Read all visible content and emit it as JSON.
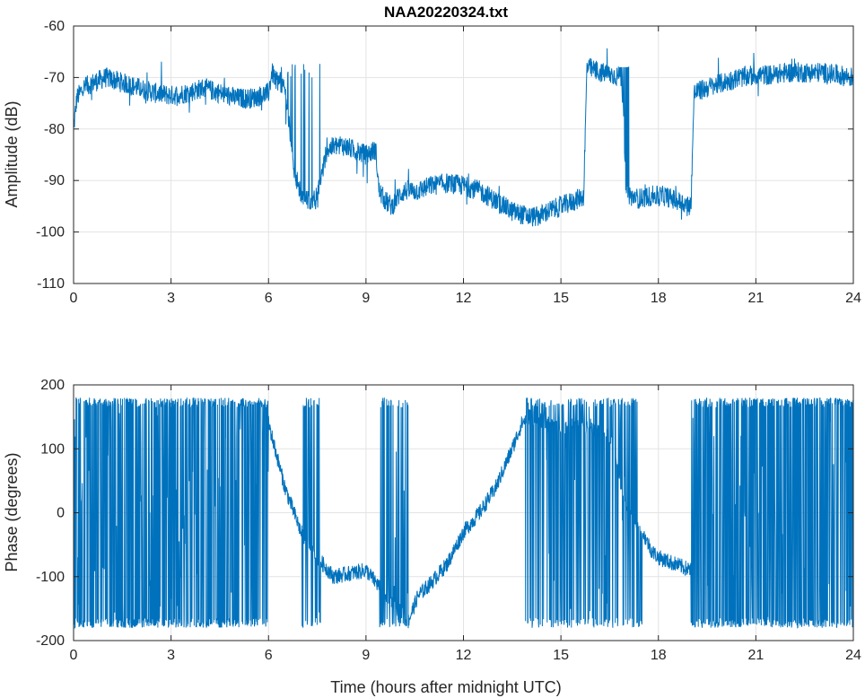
{
  "chart_data": [
    {
      "type": "line",
      "title": "NAA20220324.txt",
      "xlabel": "",
      "ylabel": "Amplitude (dB)",
      "xlim": [
        0,
        24
      ],
      "ylim": [
        -110,
        -60
      ],
      "x_ticks": [
        "0",
        "3",
        "6",
        "9",
        "12",
        "15",
        "18",
        "21",
        "24"
      ],
      "y_ticks": [
        "-60",
        "-70",
        "-80",
        "-90",
        "-100",
        "-110"
      ],
      "grid": true,
      "color": "#0072bd",
      "series": [
        {
          "x": [
            0,
            0.1,
            0.3,
            0.6,
            1.0,
            1.5,
            2.0,
            2.5,
            3.0,
            3.5,
            4.0,
            4.5,
            5.0,
            5.5,
            6.0,
            6.1,
            6.2,
            6.5,
            6.8,
            7.0,
            7.2,
            7.5,
            7.6,
            7.8,
            8.2,
            8.6,
            9.0,
            9.3,
            9.4,
            9.6,
            9.8,
            10.0,
            10.2,
            10.6,
            11.0,
            11.5,
            12.0,
            12.5,
            13.0,
            13.5,
            14.0,
            14.3,
            14.6,
            15.0,
            15.4,
            15.7,
            15.8,
            16.2,
            16.6,
            16.9,
            17.0,
            17.4,
            17.8,
            18.2,
            18.6,
            19.0,
            19.1,
            19.5,
            20.0,
            20.5,
            21.0,
            21.5,
            22.0,
            22.5,
            23.0,
            23.5,
            24.0
          ],
          "values": [
            -80,
            -74,
            -72,
            -71,
            -70,
            -71,
            -72,
            -73,
            -73.5,
            -73,
            -72,
            -73,
            -74,
            -74,
            -73,
            -69,
            -70,
            -72,
            -88,
            -93,
            -94,
            -93,
            -90,
            -84,
            -83,
            -84,
            -85,
            -84,
            -92,
            -94,
            -95,
            -93,
            -92,
            -92,
            -91,
            -90.5,
            -91,
            -92,
            -94,
            -96,
            -97,
            -97,
            -96,
            -95,
            -94,
            -93,
            -68,
            -69,
            -69.5,
            -70,
            -93,
            -93.5,
            -93,
            -93,
            -94,
            -95,
            -73,
            -72,
            -71,
            -70,
            -69.5,
            -69.5,
            -69,
            -69,
            -69,
            -69.5,
            -70
          ]
        }
      ]
    },
    {
      "type": "line",
      "title": "",
      "xlabel": "Time (hours after midnight UTC)",
      "ylabel": "Phase (degrees)",
      "xlim": [
        0,
        24
      ],
      "ylim": [
        -200,
        200
      ],
      "x_ticks": [
        "0",
        "3",
        "6",
        "9",
        "12",
        "15",
        "18",
        "21",
        "24"
      ],
      "y_ticks": [
        "200",
        "100",
        "0",
        "-100",
        "-200"
      ],
      "grid": true,
      "color": "#0072bd",
      "series": [
        {
          "x": [
            6.0,
            6.5,
            7.0,
            7.5,
            8.0,
            8.5,
            9.0,
            10.3,
            10.6,
            11.0,
            11.5,
            12.0,
            12.5,
            13.0,
            13.5,
            13.8,
            14.0,
            14.5,
            15.0,
            15.5,
            16.0,
            16.5,
            17.0,
            17.5,
            17.8,
            18.0,
            18.5,
            19.0
          ],
          "values": [
            140,
            40,
            -30,
            -70,
            -100,
            -95,
            -90,
            -170,
            -130,
            -110,
            -80,
            -30,
            0,
            40,
            100,
            140,
            150,
            140,
            135,
            140,
            130,
            120,
            10,
            -30,
            -60,
            -70,
            -80,
            -90
          ]
        }
      ],
      "wrap_regions_hours": [
        [
          0,
          6
        ],
        [
          7.0,
          7.6
        ],
        [
          9.4,
          10.3
        ],
        [
          13.9,
          17.5
        ],
        [
          19.0,
          24
        ]
      ],
      "wrap_range": [
        -180,
        180
      ]
    }
  ]
}
